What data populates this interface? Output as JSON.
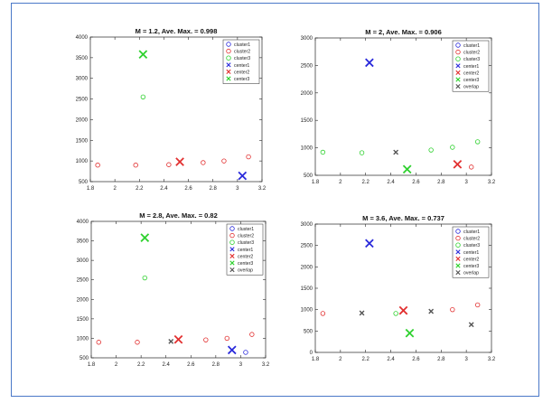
{
  "colors": {
    "cluster1": "#2a2adb",
    "cluster2": "#e23030",
    "cluster3": "#2ed12e",
    "overlap": "#555555",
    "frame": "#4a78c8"
  },
  "chart_data": [
    {
      "type": "scatter",
      "title": "M = 1.2, Ave. Max. = 0.998",
      "xlim": [
        1.8,
        3.2
      ],
      "ylim": [
        500,
        4000
      ],
      "xticks": [
        "1.8",
        "2",
        "2.2",
        "2.4",
        "2.6",
        "2.8",
        "3",
        "3.2"
      ],
      "yticks": [
        "500",
        "1000",
        "1500",
        "2000",
        "2500",
        "3000",
        "3500",
        "4000"
      ],
      "grid": false,
      "legend_position": "top-right",
      "series": [
        {
          "name": "cluster1",
          "marker": "o",
          "color": "#2a2adb",
          "points": []
        },
        {
          "name": "cluster2",
          "marker": "o",
          "color": "#e23030",
          "points": [
            [
              1.86,
              900
            ],
            [
              2.17,
              900
            ],
            [
              2.44,
              910
            ],
            [
              2.72,
              960
            ],
            [
              2.89,
              1000
            ],
            [
              3.09,
              1100
            ]
          ]
        },
        {
          "name": "cluster3",
          "marker": "o",
          "color": "#2ed12e",
          "points": [
            [
              2.23,
              2550
            ]
          ]
        },
        {
          "name": "center1",
          "marker": "x",
          "color": "#2a2adb",
          "points": [
            [
              3.04,
              640
            ]
          ]
        },
        {
          "name": "center2",
          "marker": "x",
          "color": "#e23030",
          "points": [
            [
              2.53,
              980
            ]
          ]
        },
        {
          "name": "center3",
          "marker": "x",
          "color": "#2ed12e",
          "points": [
            [
              2.23,
              3580
            ]
          ]
        }
      ]
    },
    {
      "type": "scatter",
      "title": "M = 2, Ave. Max. = 0.906",
      "xlim": [
        1.8,
        3.2
      ],
      "ylim": [
        500,
        3000
      ],
      "xticks": [
        "1.8",
        "2",
        "2.2",
        "2.4",
        "2.6",
        "2.8",
        "3",
        "3.2"
      ],
      "yticks": [
        "500",
        "1000",
        "1500",
        "2000",
        "2500",
        "3000"
      ],
      "grid": false,
      "legend_position": "top-right",
      "series": [
        {
          "name": "cluster1",
          "marker": "o",
          "color": "#2a2adb",
          "points": []
        },
        {
          "name": "cluster2",
          "marker": "o",
          "color": "#e23030",
          "points": [
            [
              3.04,
              650
            ]
          ]
        },
        {
          "name": "cluster3",
          "marker": "o",
          "color": "#2ed12e",
          "points": [
            [
              1.86,
              920
            ],
            [
              2.17,
              910
            ],
            [
              2.72,
              960
            ],
            [
              2.89,
              1010
            ],
            [
              3.09,
              1110
            ]
          ]
        },
        {
          "name": "center1",
          "marker": "x",
          "color": "#2a2adb",
          "points": [
            [
              2.23,
              2550
            ]
          ]
        },
        {
          "name": "center2",
          "marker": "x",
          "color": "#e23030",
          "points": [
            [
              2.93,
              700
            ]
          ]
        },
        {
          "name": "center3",
          "marker": "x",
          "color": "#2ed12e",
          "points": [
            [
              2.53,
              610
            ]
          ]
        },
        {
          "name": "overlap",
          "marker": "x",
          "color": "#555555",
          "points": [
            [
              2.44,
              920
            ]
          ]
        }
      ]
    },
    {
      "type": "scatter",
      "title": "M = 2.8, Ave. Max. = 0.82",
      "xlim": [
        1.8,
        3.2
      ],
      "ylim": [
        500,
        4000
      ],
      "xticks": [
        "1.8",
        "2",
        "2.2",
        "2.4",
        "2.6",
        "2.8",
        "3",
        "3.2"
      ],
      "yticks": [
        "500",
        "1000",
        "1500",
        "2000",
        "2500",
        "3000",
        "3500",
        "4000"
      ],
      "grid": false,
      "legend_position": "top-right",
      "series": [
        {
          "name": "cluster1",
          "marker": "o",
          "color": "#2a2adb",
          "points": [
            [
              3.04,
              640
            ]
          ]
        },
        {
          "name": "cluster2",
          "marker": "o",
          "color": "#e23030",
          "points": [
            [
              1.86,
              900
            ],
            [
              2.17,
              900
            ],
            [
              2.72,
              960
            ],
            [
              2.89,
              1000
            ],
            [
              3.09,
              1100
            ]
          ]
        },
        {
          "name": "cluster3",
          "marker": "o",
          "color": "#2ed12e",
          "points": [
            [
              2.23,
              2550
            ]
          ]
        },
        {
          "name": "center1",
          "marker": "x",
          "color": "#2a2adb",
          "points": [
            [
              2.93,
              700
            ]
          ]
        },
        {
          "name": "center2",
          "marker": "x",
          "color": "#e23030",
          "points": [
            [
              2.5,
              970
            ]
          ]
        },
        {
          "name": "center3",
          "marker": "x",
          "color": "#2ed12e",
          "points": [
            [
              2.23,
              3580
            ]
          ]
        },
        {
          "name": "overlap",
          "marker": "x",
          "color": "#555555",
          "points": [
            [
              2.44,
              920
            ]
          ]
        }
      ]
    },
    {
      "type": "scatter",
      "title": "M = 3.6, Ave. Max. = 0.737",
      "xlim": [
        1.8,
        3.2
      ],
      "ylim": [
        0,
        3000
      ],
      "xticks": [
        "1.8",
        "2",
        "2.2",
        "2.4",
        "2.6",
        "2.8",
        "3",
        "3.2"
      ],
      "yticks": [
        "0",
        "500",
        "1000",
        "1500",
        "2000",
        "2500",
        "3000"
      ],
      "grid": false,
      "legend_position": "top-right",
      "series": [
        {
          "name": "cluster1",
          "marker": "o",
          "color": "#2a2adb",
          "points": []
        },
        {
          "name": "cluster2",
          "marker": "o",
          "color": "#e23030",
          "points": [
            [
              1.86,
              910
            ],
            [
              2.89,
              1000
            ],
            [
              3.09,
              1110
            ]
          ]
        },
        {
          "name": "cluster3",
          "marker": "o",
          "color": "#2ed12e",
          "points": [
            [
              2.44,
              910
            ]
          ]
        },
        {
          "name": "center1",
          "marker": "x",
          "color": "#2a2adb",
          "points": [
            [
              2.23,
              2550
            ]
          ]
        },
        {
          "name": "center2",
          "marker": "x",
          "color": "#e23030",
          "points": [
            [
              2.5,
              980
            ]
          ]
        },
        {
          "name": "center3",
          "marker": "x",
          "color": "#2ed12e",
          "points": [
            [
              2.55,
              450
            ]
          ]
        },
        {
          "name": "overlap",
          "marker": "x",
          "color": "#555555",
          "points": [
            [
              2.17,
              920
            ],
            [
              2.72,
              960
            ],
            [
              3.04,
              650
            ]
          ]
        }
      ]
    }
  ]
}
